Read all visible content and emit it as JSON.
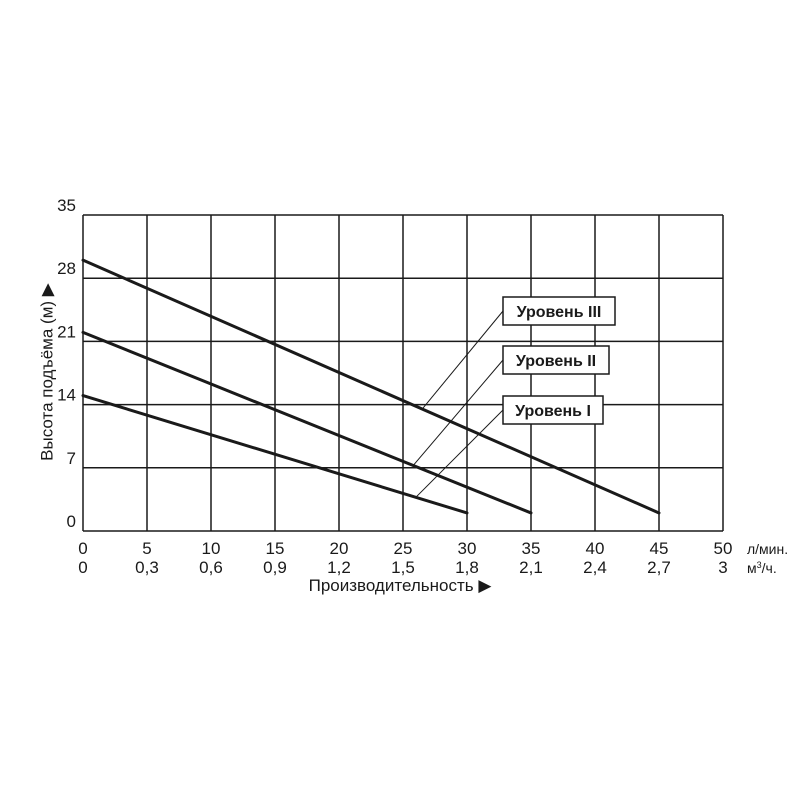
{
  "chart_data": {
    "type": "line",
    "ylabel": "Высота подъёма (м) ▶",
    "xlabel": "Производительность ▶",
    "grid": true,
    "ylim": [
      0,
      35
    ],
    "yticks": [
      "0",
      "7",
      "14",
      "21",
      "28",
      "35"
    ],
    "x_axes": [
      {
        "unit": "л/мин.",
        "range": [
          0,
          50
        ],
        "ticks": [
          "0",
          "5",
          "10",
          "15",
          "20",
          "25",
          "30",
          "35",
          "40",
          "45",
          "50"
        ]
      },
      {
        "unit_base": "м",
        "unit_sup": "3",
        "unit_tail": "/ч.",
        "range": [
          0,
          3
        ],
        "ticks": [
          "0",
          "0,3",
          "0,6",
          "0,9",
          "1,2",
          "1,5",
          "1,8",
          "2,1",
          "2,4",
          "2,7",
          "3"
        ]
      }
    ],
    "series": [
      {
        "name": "Уровень III",
        "x": [
          0,
          45
        ],
        "y": [
          30,
          2
        ]
      },
      {
        "name": "Уровень II",
        "x": [
          0,
          35
        ],
        "y": [
          22,
          2
        ]
      },
      {
        "name": "Уровень I",
        "x": [
          0,
          30
        ],
        "y": [
          15,
          2
        ]
      }
    ],
    "legend_pointers": [
      {
        "series": 0,
        "x": 26.5
      },
      {
        "series": 1,
        "x": 25.8
      },
      {
        "series": 2,
        "x": 26.0
      }
    ]
  }
}
